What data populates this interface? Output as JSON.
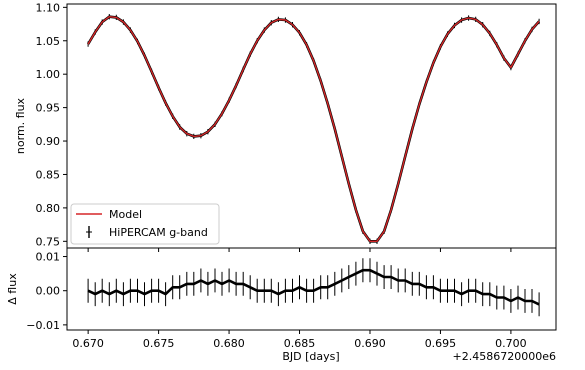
{
  "chart_data": [
    {
      "type": "line",
      "panel": "top",
      "ylabel": "norm. flux",
      "xlabel": "",
      "xlim": [
        0.6685,
        0.7032
      ],
      "ylim": [
        0.74,
        1.105
      ],
      "yticks": [
        0.75,
        0.8,
        0.85,
        0.9,
        0.95,
        1.0,
        1.05,
        1.1
      ],
      "ytick_labels": [
        "0.75",
        "0.80",
        "0.85",
        "0.90",
        "0.95",
        "1.00",
        "1.05",
        "1.10"
      ],
      "xticks": [
        0.67,
        0.675,
        0.68,
        0.685,
        0.69,
        0.695,
        0.7
      ],
      "legend": {
        "position": "lower-left",
        "entries": [
          "Model",
          "HiPERCAM g-band"
        ]
      },
      "series": [
        {
          "name": "HiPERCAM g-band",
          "style": "errorbar",
          "color": "#000000",
          "x": [
            0.67,
            0.6705,
            0.671,
            0.6715,
            0.672,
            0.6725,
            0.673,
            0.6735,
            0.674,
            0.6745,
            0.675,
            0.6755,
            0.676,
            0.6765,
            0.677,
            0.6775,
            0.678,
            0.6785,
            0.679,
            0.6795,
            0.68,
            0.6805,
            0.681,
            0.6815,
            0.682,
            0.6825,
            0.683,
            0.6835,
            0.684,
            0.6845,
            0.685,
            0.6855,
            0.686,
            0.6865,
            0.687,
            0.6875,
            0.688,
            0.6885,
            0.689,
            0.6895,
            0.69,
            0.6905,
            0.691,
            0.6915,
            0.692,
            0.6925,
            0.693,
            0.6935,
            0.694,
            0.6945,
            0.695,
            0.6955,
            0.696,
            0.6965,
            0.697,
            0.6975,
            0.698,
            0.6985,
            0.699,
            0.6995,
            0.7,
            0.7005,
            0.701,
            0.7015,
            0.702
          ],
          "y": [
            1.045,
            1.063,
            1.078,
            1.086,
            1.085,
            1.078,
            1.066,
            1.049,
            1.028,
            1.004,
            0.98,
            0.957,
            0.937,
            0.921,
            0.911,
            0.907,
            0.908,
            0.914,
            0.925,
            0.941,
            0.961,
            0.983,
            1.007,
            1.03,
            1.05,
            1.066,
            1.077,
            1.082,
            1.081,
            1.074,
            1.062,
            1.044,
            1.02,
            0.99,
            0.956,
            0.918,
            0.877,
            0.836,
            0.797,
            0.765,
            0.75,
            0.75,
            0.765,
            0.797,
            0.836,
            0.877,
            0.918,
            0.955,
            0.988,
            1.017,
            1.041,
            1.06,
            1.073,
            1.081,
            1.084,
            1.082,
            1.074,
            1.061,
            1.044,
            1.024,
            1.01,
            1.03,
            1.05,
            1.067,
            1.079
          ]
        },
        {
          "name": "Model",
          "style": "line",
          "color": "#d62728",
          "x": [
            0.67,
            0.6705,
            0.671,
            0.6715,
            0.672,
            0.6725,
            0.673,
            0.6735,
            0.674,
            0.6745,
            0.675,
            0.6755,
            0.676,
            0.6765,
            0.677,
            0.6775,
            0.678,
            0.6785,
            0.679,
            0.6795,
            0.68,
            0.6805,
            0.681,
            0.6815,
            0.682,
            0.6825,
            0.683,
            0.6835,
            0.684,
            0.6845,
            0.685,
            0.6855,
            0.686,
            0.6865,
            0.687,
            0.6875,
            0.688,
            0.6885,
            0.689,
            0.6895,
            0.69,
            0.6905,
            0.691,
            0.6915,
            0.692,
            0.6925,
            0.693,
            0.6935,
            0.694,
            0.6945,
            0.695,
            0.6955,
            0.696,
            0.6965,
            0.697,
            0.6975,
            0.698,
            0.6985,
            0.699,
            0.6995,
            0.7,
            0.7005,
            0.701,
            0.7015,
            0.702
          ],
          "y": [
            1.045,
            1.063,
            1.078,
            1.086,
            1.085,
            1.078,
            1.066,
            1.049,
            1.028,
            1.004,
            0.98,
            0.957,
            0.937,
            0.921,
            0.911,
            0.907,
            0.908,
            0.914,
            0.925,
            0.941,
            0.961,
            0.983,
            1.007,
            1.03,
            1.05,
            1.066,
            1.077,
            1.082,
            1.081,
            1.074,
            1.062,
            1.044,
            1.02,
            0.99,
            0.956,
            0.918,
            0.877,
            0.836,
            0.797,
            0.765,
            0.75,
            0.75,
            0.765,
            0.797,
            0.836,
            0.877,
            0.918,
            0.955,
            0.988,
            1.017,
            1.041,
            1.06,
            1.073,
            1.081,
            1.084,
            1.082,
            1.074,
            1.061,
            1.044,
            1.024,
            1.01,
            1.03,
            1.05,
            1.067,
            1.079
          ]
        }
      ]
    },
    {
      "type": "line",
      "panel": "bottom",
      "ylabel": "Δ flux",
      "xlabel": "BJD [days]",
      "offset_text": "+2.4586720000e6",
      "xlim": [
        0.6685,
        0.7032
      ],
      "ylim": [
        -0.0115,
        0.0125
      ],
      "yticks": [
        -0.01,
        0.0,
        0.01
      ],
      "ytick_labels": [
        "−0.01",
        "0.00",
        "0.01"
      ],
      "xticks": [
        0.67,
        0.675,
        0.68,
        0.685,
        0.69,
        0.695,
        0.7
      ],
      "xtick_labels": [
        "0.670",
        "0.675",
        "0.680",
        "0.685",
        "0.690",
        "0.695",
        "0.700"
      ],
      "series": [
        {
          "name": "Δ flux",
          "style": "errorbar",
          "color": "#000000",
          "x": [
            0.67,
            0.6705,
            0.671,
            0.6715,
            0.672,
            0.6725,
            0.673,
            0.6735,
            0.674,
            0.6745,
            0.675,
            0.6755,
            0.676,
            0.6765,
            0.677,
            0.6775,
            0.678,
            0.6785,
            0.679,
            0.6795,
            0.68,
            0.6805,
            0.681,
            0.6815,
            0.682,
            0.6825,
            0.683,
            0.6835,
            0.684,
            0.6845,
            0.685,
            0.6855,
            0.686,
            0.6865,
            0.687,
            0.6875,
            0.688,
            0.6885,
            0.689,
            0.6895,
            0.69,
            0.6905,
            0.691,
            0.6915,
            0.692,
            0.6925,
            0.693,
            0.6935,
            0.694,
            0.6945,
            0.695,
            0.6955,
            0.696,
            0.6965,
            0.697,
            0.6975,
            0.698,
            0.6985,
            0.699,
            0.6995,
            0.7,
            0.7005,
            0.701,
            0.7015,
            0.702
          ],
          "y": [
            0.0,
            -0.001,
            0.0,
            -0.001,
            0.0,
            -0.001,
            0.0,
            0.0,
            -0.001,
            0.0,
            0.0,
            -0.001,
            0.001,
            0.001,
            0.002,
            0.002,
            0.003,
            0.002,
            0.003,
            0.002,
            0.003,
            0.002,
            0.002,
            0.001,
            0.0,
            0.0,
            0.0,
            -0.001,
            0.0,
            0.0,
            0.001,
            0.0,
            0.0,
            0.001,
            0.001,
            0.002,
            0.003,
            0.004,
            0.005,
            0.006,
            0.006,
            0.005,
            0.004,
            0.004,
            0.003,
            0.003,
            0.002,
            0.002,
            0.001,
            0.001,
            0.0,
            0.0,
            0.0,
            -0.001,
            0.0,
            0.0,
            -0.001,
            -0.001,
            -0.002,
            -0.002,
            -0.003,
            -0.002,
            -0.003,
            -0.003,
            -0.004
          ],
          "yerr": 0.0035
        }
      ]
    }
  ]
}
